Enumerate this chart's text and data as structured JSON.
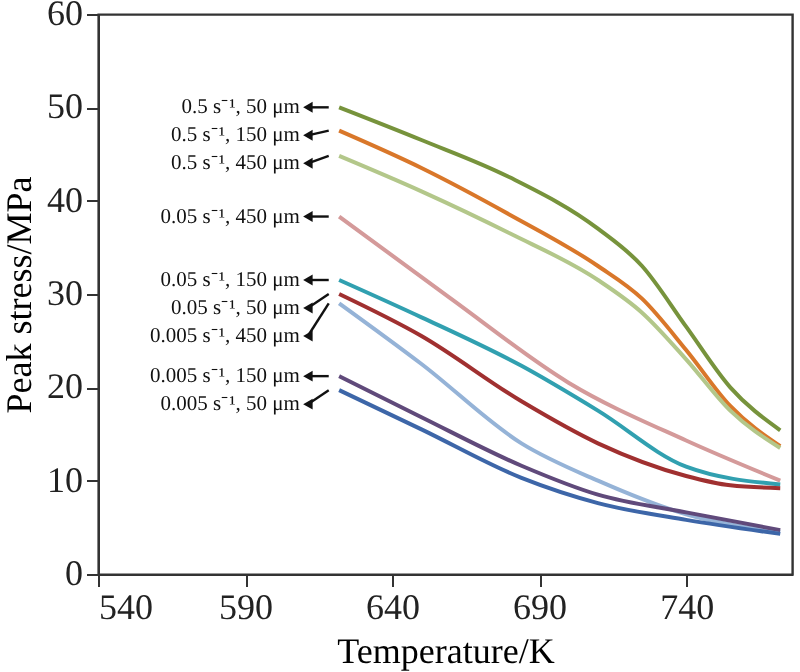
{
  "chart_data": {
    "type": "line",
    "xlabel": "Temperature/K",
    "ylabel": "Peak stress/MPa",
    "xlim": [
      540,
      776
    ],
    "ylim": [
      0,
      60
    ],
    "xticks": [
      540,
      590,
      640,
      690,
      740
    ],
    "yticks": [
      0,
      10,
      20,
      30,
      40,
      50,
      60
    ],
    "grid": false,
    "marker": "none",
    "line_style": "solid",
    "series": [
      {
        "name": "0.5 s⁻¹, 50 μm",
        "color": "#77933c",
        "x": [
          622,
          650,
          680,
          710,
          725,
          740,
          755,
          772
        ],
        "values": [
          50,
          46.5,
          42.5,
          37,
          33,
          26.5,
          20,
          15.4
        ]
      },
      {
        "name": "0.5 s⁻¹, 150 μm",
        "color": "#d9772a",
        "x": [
          622,
          650,
          680,
          710,
          725,
          740,
          755,
          772
        ],
        "values": [
          47.5,
          43.5,
          38.5,
          33,
          29.5,
          24,
          18,
          13.7
        ]
      },
      {
        "name": "0.5 s⁻¹, 450 μm",
        "color": "#b3c78a",
        "x": [
          622,
          650,
          680,
          710,
          725,
          740,
          755,
          772
        ],
        "values": [
          44.8,
          41,
          36.5,
          31.5,
          28,
          23,
          17.5,
          13.5
        ]
      },
      {
        "name": "0.05 s⁻¹, 450 μm",
        "color": "#d49a9a",
        "x": [
          622,
          660,
          700,
          740,
          772
        ],
        "values": [
          38.3,
          29.5,
          20.5,
          14.3,
          10
        ]
      },
      {
        "name": "0.05 s⁻¹, 150 μm",
        "color": "#31a0b0",
        "x": [
          622,
          650,
          684,
          710,
          740,
          772
        ],
        "values": [
          31.5,
          27.5,
          22.3,
          17.5,
          11.5,
          9.6
        ]
      },
      {
        "name": "0.05 s⁻¹, 50 μm",
        "color": "#a03030",
        "x": [
          622,
          650,
          684,
          710,
          740,
          755,
          772
        ],
        "values": [
          30,
          25.5,
          18.5,
          14,
          10.5,
          9.5,
          9.2
        ]
      },
      {
        "name": "0.005 s⁻¹, 450 μm",
        "color": "#95b3d7",
        "x": [
          622,
          650,
          684,
          710,
          740,
          772
        ],
        "values": [
          29,
          22.5,
          14,
          10,
          6.4,
          4.5
        ]
      },
      {
        "name": "0.005 s⁻¹, 150 μm",
        "color": "#604a7b",
        "x": [
          622,
          650,
          684,
          710,
          740,
          772
        ],
        "values": [
          21.2,
          16.8,
          11.6,
          8.5,
          6.6,
          4.7
        ]
      },
      {
        "name": "0.005 s⁻¹, 50 μm",
        "color": "#3d66a8",
        "x": [
          622,
          650,
          684,
          710,
          740,
          772
        ],
        "values": [
          19.7,
          15.5,
          10.3,
          7.6,
          5.8,
          4.3
        ]
      }
    ]
  }
}
